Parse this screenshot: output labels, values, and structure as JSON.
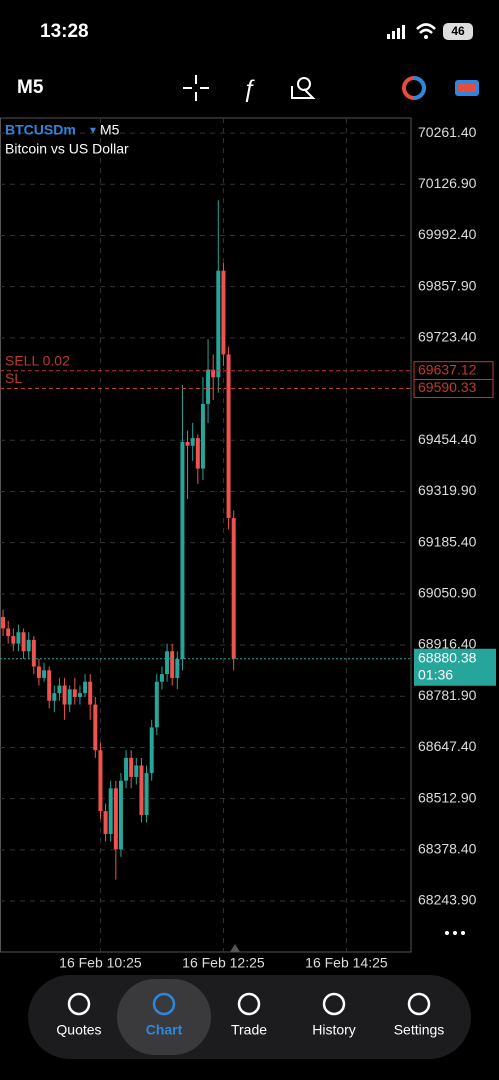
{
  "status_bar": {
    "time": "13:28",
    "battery": "46"
  },
  "toolbar": {
    "timeframe": "M5"
  },
  "symbol": {
    "name": "BTCUSDm",
    "timeframe": "M5",
    "description": "Bitcoin vs US Dollar"
  },
  "chart_data": {
    "type": "candlestick",
    "open": [
      68990,
      68960,
      68940,
      68920,
      68950,
      68900,
      68930,
      68860,
      68830,
      68850,
      68770,
      68790,
      68810,
      68760,
      68800,
      68780,
      68790,
      68820,
      68760,
      68640,
      68480,
      68420,
      68540,
      68380,
      68560,
      68620,
      68570,
      68600,
      68470,
      68580,
      68700,
      68820,
      68840,
      68900,
      68830,
      68880,
      69450,
      69440,
      69460,
      69380,
      69550,
      69640,
      69620,
      69900,
      69680,
      69250
    ],
    "high": [
      69010,
      68980,
      68960,
      68970,
      68960,
      68950,
      68940,
      68880,
      68870,
      68860,
      68810,
      68830,
      68830,
      68810,
      68830,
      68810,
      68840,
      68840,
      68780,
      68660,
      68500,
      68560,
      68560,
      68580,
      68640,
      68640,
      68620,
      68620,
      68600,
      68720,
      68840,
      68860,
      68920,
      68920,
      68900,
      69600,
      69480,
      69500,
      69470,
      69620,
      69720,
      69680,
      70085,
      69920,
      69700,
      69270
    ],
    "low": [
      68940,
      68920,
      68900,
      68900,
      68880,
      68880,
      68840,
      68810,
      68820,
      68750,
      68740,
      68770,
      68720,
      68740,
      68760,
      68760,
      68780,
      68720,
      68620,
      68460,
      68400,
      68400,
      68300,
      68360,
      68540,
      68540,
      68550,
      68450,
      68450,
      68560,
      68680,
      68800,
      68820,
      68810,
      68800,
      68850,
      69300,
      69400,
      69340,
      69350,
      69500,
      69560,
      69580,
      69650,
      69220,
      68850
    ],
    "close": [
      68960,
      68940,
      68920,
      68950,
      68900,
      68930,
      68860,
      68830,
      68850,
      68770,
      68790,
      68810,
      68760,
      68800,
      68780,
      68790,
      68820,
      68760,
      68640,
      68480,
      68420,
      68540,
      68380,
      68560,
      68620,
      68570,
      68600,
      68470,
      68580,
      68700,
      68820,
      68840,
      68900,
      68830,
      68880,
      69450,
      69440,
      69460,
      69380,
      69550,
      69640,
      69620,
      69900,
      69680,
      69250,
      68880
    ],
    "up_color": "#26a69a",
    "down_color": "#ef5350",
    "xlim": [
      -0.6,
      79.6
    ],
    "xticks": [
      {
        "value": 19,
        "label": "16 Feb 10:25"
      },
      {
        "value": 43,
        "label": "16 Feb 12:25"
      },
      {
        "value": 67,
        "label": "16 Feb 14:25"
      }
    ],
    "ylim": [
      68110,
      70301
    ],
    "yticks": [
      {
        "value": 70261.4,
        "label": "70261.40"
      },
      {
        "value": 70126.9,
        "label": "70126.90"
      },
      {
        "value": 69992.4,
        "label": "69992.40"
      },
      {
        "value": 69857.9,
        "label": "69857.90"
      },
      {
        "value": 69723.4,
        "label": "69723.40"
      },
      {
        "value": 69454.4,
        "label": "69454.40"
      },
      {
        "value": 69319.9,
        "label": "69319.90"
      },
      {
        "value": 69185.4,
        "label": "69185.40"
      },
      {
        "value": 69050.9,
        "label": "69050.90"
      },
      {
        "value": 68916.4,
        "label": "68916.40"
      },
      {
        "value": 68781.9,
        "label": "68781.90"
      },
      {
        "value": 68647.4,
        "label": "68647.40"
      },
      {
        "value": 68512.9,
        "label": "68512.90"
      },
      {
        "value": 68378.4,
        "label": "68378.40"
      },
      {
        "value": 68243.9,
        "label": "68243.90"
      }
    ],
    "grid": true,
    "price_lines": [
      {
        "label": "SELL 0.02",
        "value": 69637.12,
        "color": "#c0392b"
      },
      {
        "label": "SL",
        "value": 69590.33,
        "color": "#c0392b"
      }
    ],
    "current_price": {
      "value": 68880.38,
      "countdown": "01:36",
      "color": "#26a69a"
    }
  },
  "nav": {
    "tabs": [
      "Quotes",
      "Chart",
      "Trade",
      "History",
      "Settings"
    ],
    "active": 1
  }
}
